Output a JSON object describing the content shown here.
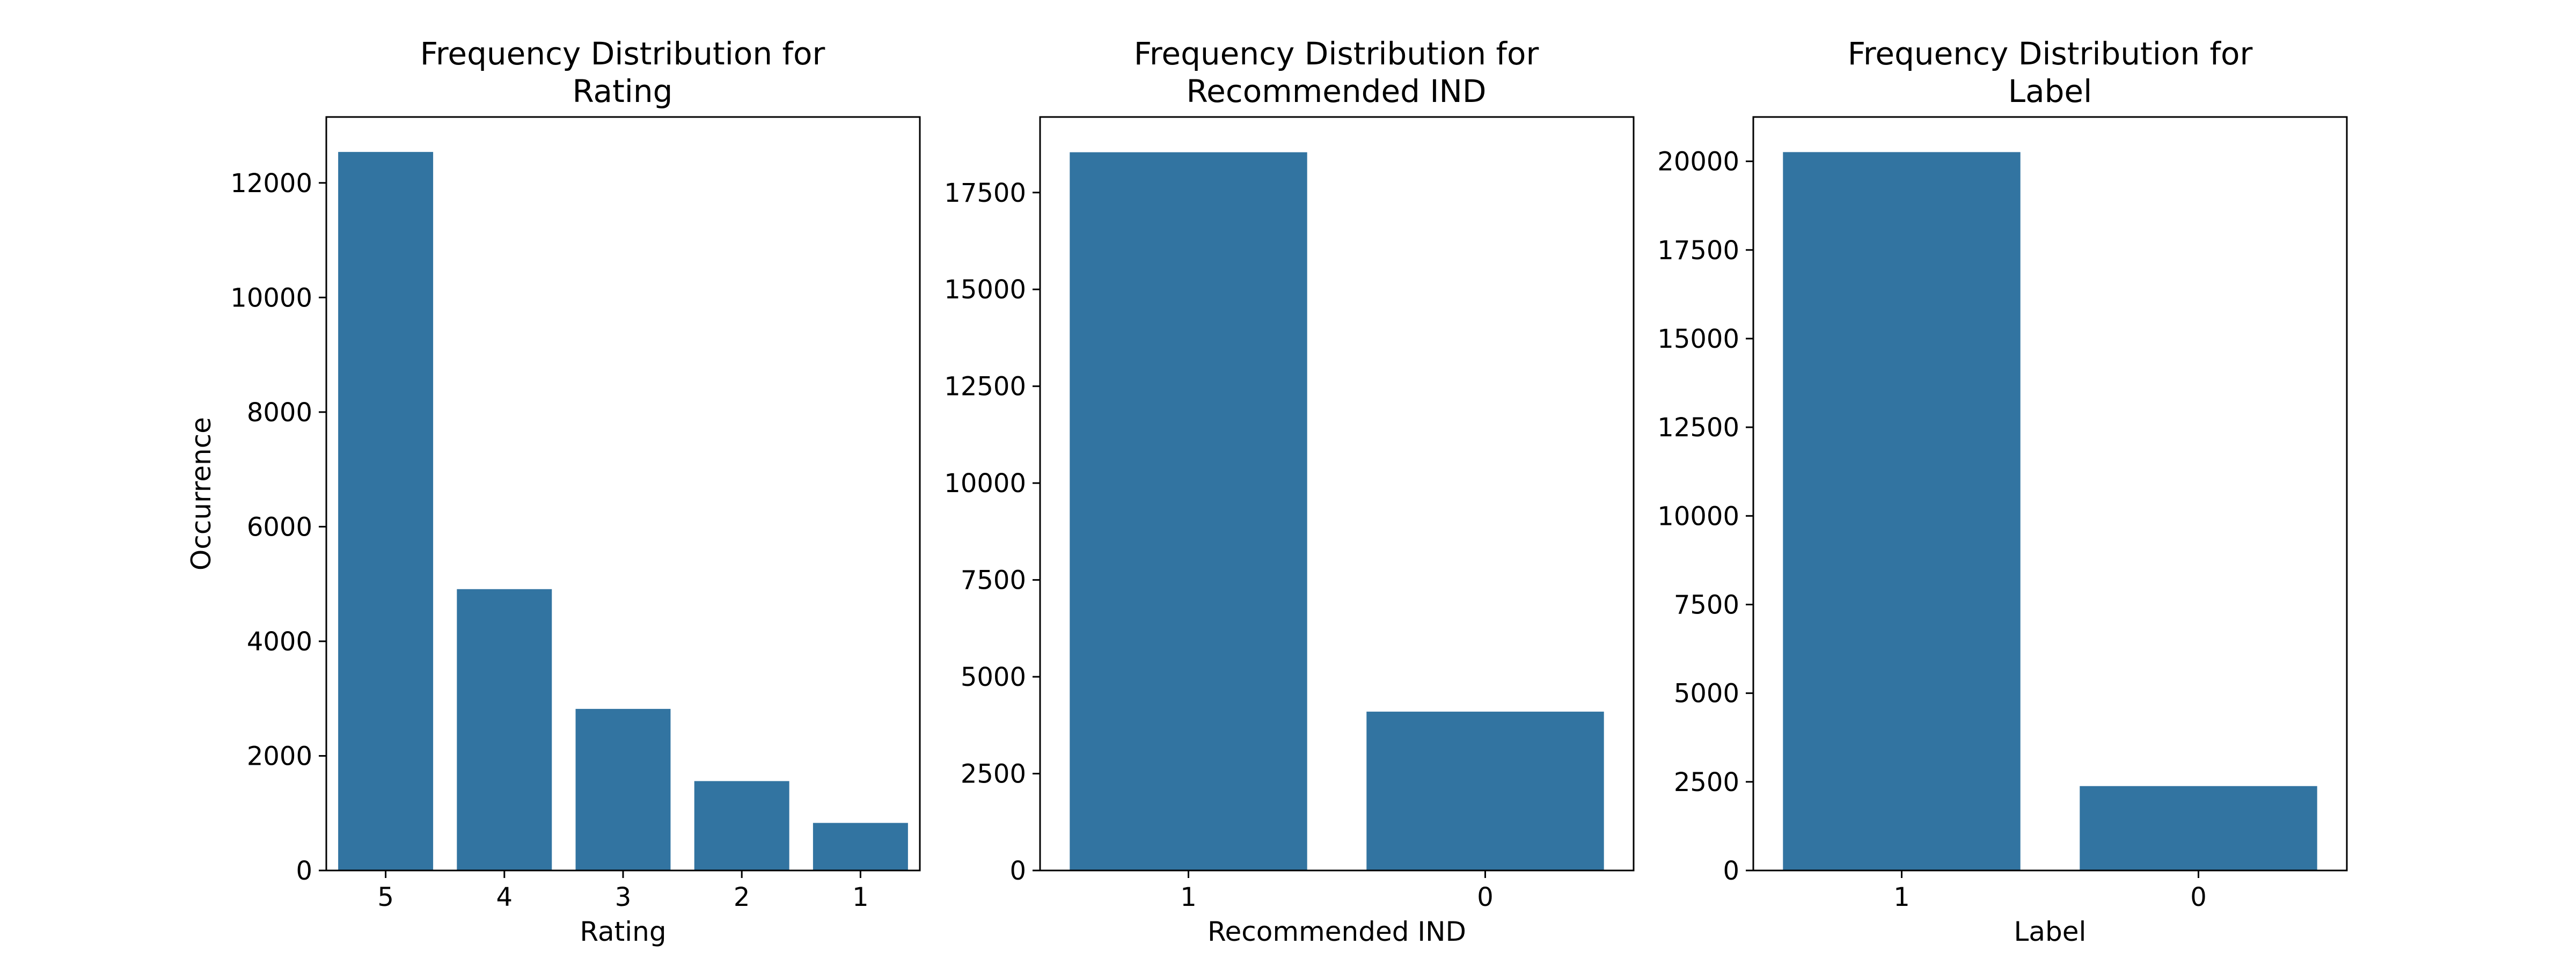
{
  "colors": {
    "bar": "#3274a1",
    "axis": "#000000",
    "background": "#ffffff"
  },
  "chart_data": [
    {
      "type": "bar",
      "title_lines": [
        "Frequency Distribution for",
        "Rating"
      ],
      "xlabel": "Rating",
      "ylabel": "Occurrence",
      "categories": [
        "5",
        "4",
        "3",
        "2",
        "1"
      ],
      "values": [
        12540,
        4910,
        2820,
        1560,
        830
      ],
      "ylim": [
        0,
        13150
      ],
      "yticks": [
        0,
        2000,
        4000,
        6000,
        8000,
        10000,
        12000
      ],
      "grid": false,
      "legend": "none"
    },
    {
      "type": "bar",
      "title_lines": [
        "Frequency Distribution for",
        "Recommended IND"
      ],
      "xlabel": "Recommended IND",
      "ylabel": "",
      "categories": [
        "1",
        "0"
      ],
      "values": [
        18540,
        4100
      ],
      "ylim": [
        0,
        19450
      ],
      "yticks": [
        0,
        2500,
        5000,
        7500,
        10000,
        12500,
        15000,
        17500
      ],
      "grid": false,
      "legend": "none"
    },
    {
      "type": "bar",
      "title_lines": [
        "Frequency Distribution for",
        "Label"
      ],
      "xlabel": "Label",
      "ylabel": "",
      "categories": [
        "1",
        "0"
      ],
      "values": [
        20260,
        2380
      ],
      "ylim": [
        0,
        21250
      ],
      "yticks": [
        0,
        2500,
        5000,
        7500,
        10000,
        12500,
        15000,
        17500,
        20000
      ],
      "grid": false,
      "legend": "none"
    }
  ]
}
